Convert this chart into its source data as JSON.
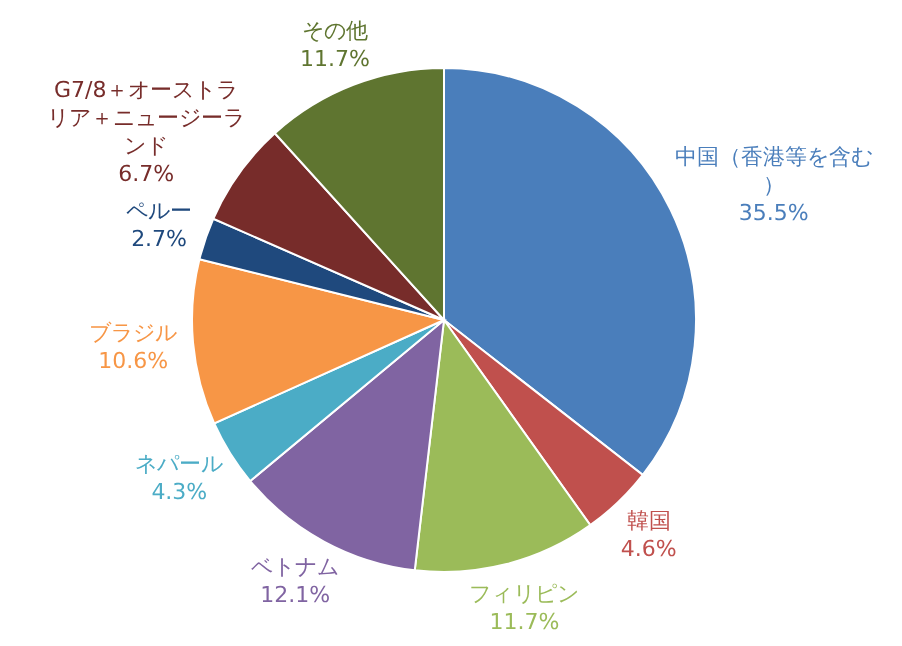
{
  "chart_data": {
    "type": "pie",
    "categories": [
      "中国（香港等を含む）",
      "韓国",
      "フィリピン",
      "ベトナム",
      "ネパール",
      "ブラジル",
      "ペルー",
      "G7/8＋オーストラリア＋ニュージーランド",
      "その他"
    ],
    "values": [
      35.5,
      4.6,
      11.7,
      12.1,
      4.3,
      10.6,
      2.7,
      6.7,
      11.7
    ],
    "value_labels": [
      "35.5%",
      "4.6%",
      "11.7%",
      "12.1%",
      "4.3%",
      "10.6%",
      "2.7%",
      "6.7%",
      "11.7%"
    ],
    "colors": [
      "#4a7ebb",
      "#c0504d",
      "#9bbb59",
      "#8064a2",
      "#4bacc6",
      "#f79646",
      "#1f497d",
      "#772c2a",
      "#5f7530"
    ]
  }
}
